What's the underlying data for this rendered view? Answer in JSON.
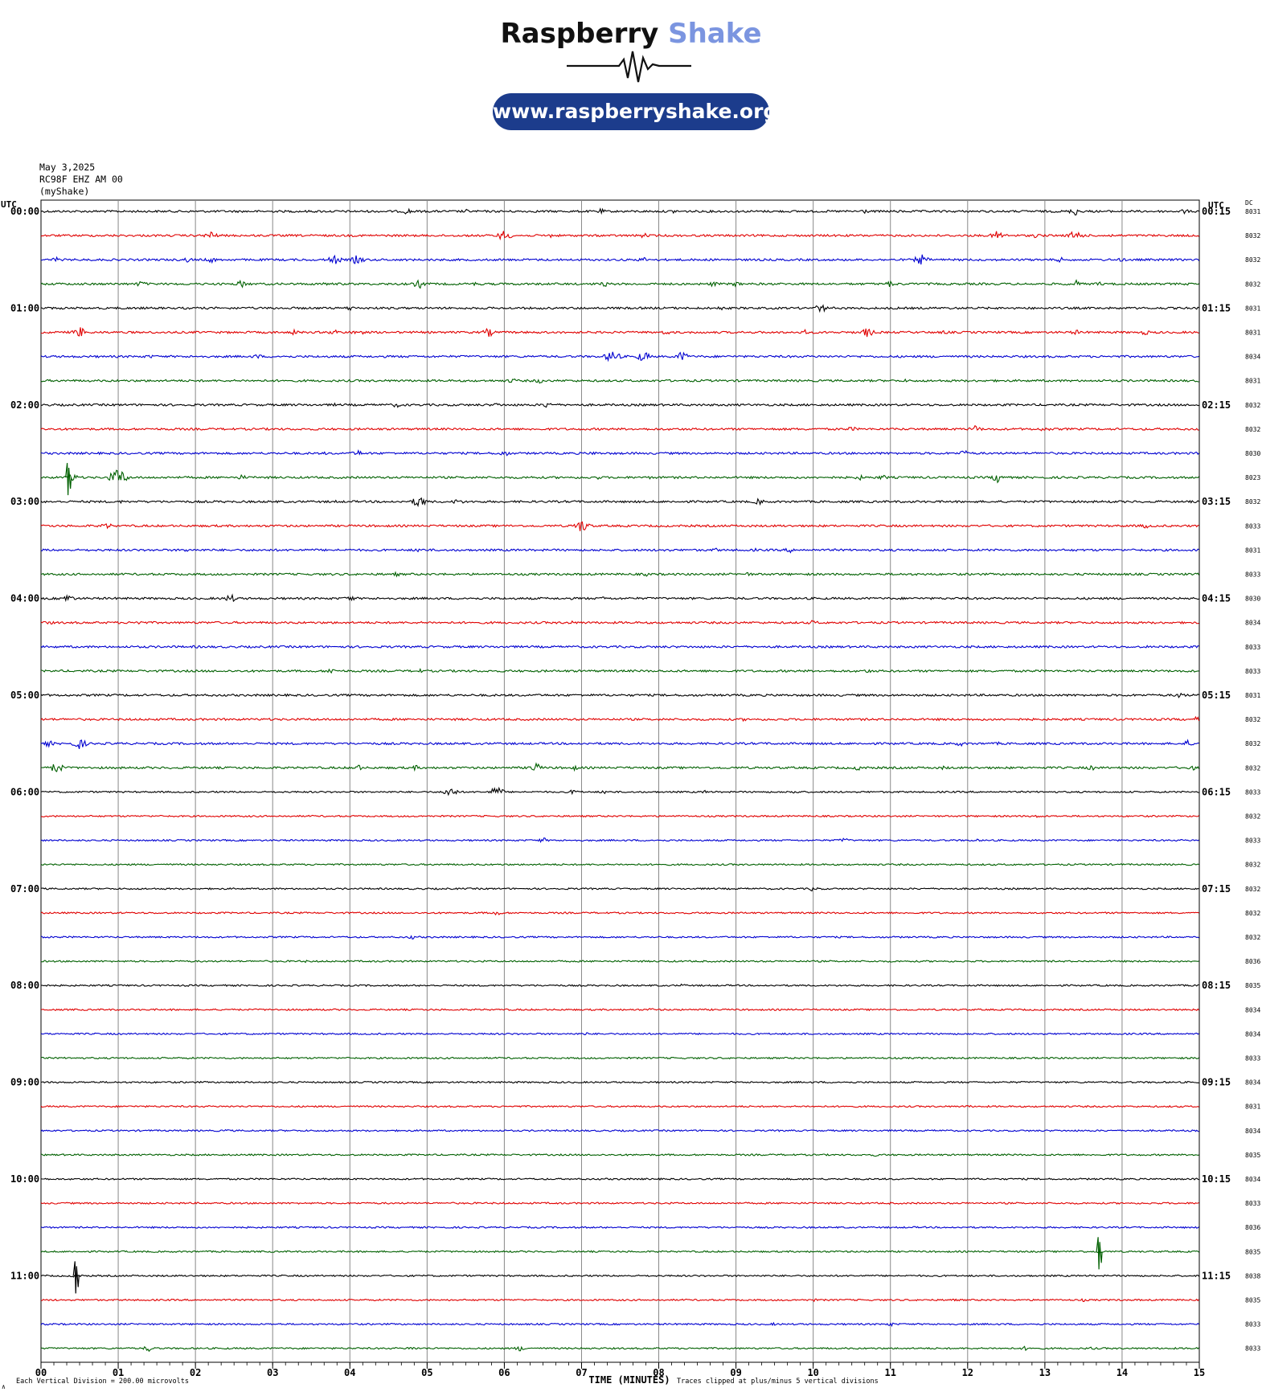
{
  "brand": {
    "name_dark": "Raspberry",
    "name_light": "Shake",
    "url": "www.raspberryshake.org",
    "name_color": "#111111",
    "accent": "#7b95e0",
    "pill_color": "#1c3c8c"
  },
  "header": {
    "date": "May 3,2025",
    "station": "RC98F EHZ AM 00",
    "network": "(myShake)"
  },
  "axes": {
    "left_label": "UTC",
    "right_label": "UTC",
    "dc_label": "DC",
    "xlabel": "TIME (MINUTES)",
    "scale_note": "Each Vertical Division =  200.00 microvolts",
    "clip_note": "Traces clipped at plus/minus 5 vertical divisions",
    "corner_mark": "∧"
  },
  "chart_data": {
    "type": "line",
    "subtype": "helicorder",
    "x_ticks": [
      "00",
      "01",
      "02",
      "03",
      "04",
      "05",
      "06",
      "07",
      "08",
      "09",
      "10",
      "11",
      "12",
      "13",
      "14",
      "15"
    ],
    "xlim": [
      0,
      15
    ],
    "trace_colors": [
      "#000000",
      "#e00000",
      "#0000d0",
      "#006000"
    ],
    "grid": true,
    "left_times": [
      "00:00",
      "",
      "",
      "",
      "01:00",
      "",
      "",
      "",
      "02:00",
      "",
      "",
      "",
      "03:00",
      "",
      "",
      "",
      "04:00",
      "",
      "",
      "",
      "05:00",
      "",
      "",
      "",
      "06:00",
      "",
      "",
      "",
      "07:00",
      "",
      "",
      "",
      "08:00",
      "",
      "",
      "",
      "09:00",
      "",
      "",
      "",
      "10:00",
      "",
      "",
      "",
      "11:00",
      "",
      "",
      ""
    ],
    "right_times": [
      "00:15",
      "",
      "",
      "",
      "01:15",
      "",
      "",
      "",
      "02:15",
      "",
      "",
      "",
      "03:15",
      "",
      "",
      "",
      "04:15",
      "",
      "",
      "",
      "05:15",
      "",
      "",
      "",
      "06:15",
      "",
      "",
      "",
      "07:15",
      "",
      "",
      "",
      "08:15",
      "",
      "",
      "",
      "09:15",
      "",
      "",
      "",
      "10:15",
      "",
      "",
      "",
      "11:15",
      "",
      "",
      ""
    ],
    "dc_values": [
      "8031",
      "8032",
      "8032",
      "8032",
      "8031",
      "8031",
      "8034",
      "8031",
      "8032",
      "8032",
      "8030",
      "8023",
      "8032",
      "8033",
      "8031",
      "8033",
      "8030",
      "8034",
      "8033",
      "8033",
      "8031",
      "8032",
      "8032",
      "8032",
      "8033",
      "8032",
      "8033",
      "8032",
      "8032",
      "8032",
      "8032",
      "8036",
      "8035",
      "8034",
      "8034",
      "8033",
      "8034",
      "8031",
      "8034",
      "8035",
      "8034",
      "8033",
      "8036",
      "8035",
      "8038",
      "8035",
      "8033",
      "8033"
    ],
    "rows": 48,
    "activity": [
      [
        [
          4.75,
          0.6
        ],
        [
          5.5,
          0.4
        ],
        [
          7.25,
          0.5
        ],
        [
          8.2,
          0.4
        ],
        [
          10.65,
          0.5
        ],
        [
          11.1,
          0.3
        ],
        [
          13.4,
          0.8
        ],
        [
          14.8,
          0.5
        ]
      ],
      [
        [
          2.2,
          0.8
        ],
        [
          6.0,
          1.0
        ],
        [
          6.6,
          0.4
        ],
        [
          7.8,
          0.5
        ],
        [
          12.4,
          1.0
        ],
        [
          12.9,
          0.5
        ],
        [
          13.4,
          1.0
        ],
        [
          13.9,
          0.4
        ]
      ],
      [
        [
          0.2,
          0.5
        ],
        [
          1.9,
          0.5
        ],
        [
          2.2,
          0.6
        ],
        [
          3.8,
          0.9
        ],
        [
          4.1,
          0.9
        ],
        [
          7.8,
          0.5
        ],
        [
          11.4,
          1.0
        ],
        [
          13.2,
          0.5
        ],
        [
          14.0,
          0.4
        ]
      ],
      [
        [
          1.3,
          0.6
        ],
        [
          2.6,
          0.7
        ],
        [
          3.7,
          0.4
        ],
        [
          4.9,
          0.8
        ],
        [
          5.6,
          0.4
        ],
        [
          7.3,
          0.5
        ],
        [
          8.7,
          0.5
        ],
        [
          9.0,
          0.5
        ],
        [
          11.0,
          0.6
        ],
        [
          13.4,
          0.7
        ],
        [
          13.7,
          0.4
        ]
      ],
      [
        [
          4.0,
          0.5
        ],
        [
          8.8,
          0.4
        ],
        [
          10.1,
          0.8
        ]
      ],
      [
        [
          0.5,
          1.0
        ],
        [
          3.3,
          0.6
        ],
        [
          3.8,
          0.6
        ],
        [
          4.1,
          0.7
        ],
        [
          5.8,
          0.8
        ],
        [
          8.1,
          0.5
        ],
        [
          9.9,
          0.5
        ],
        [
          10.7,
          0.9
        ],
        [
          11.7,
          0.4
        ],
        [
          13.4,
          0.5
        ],
        [
          14.3,
          0.5
        ]
      ],
      [
        [
          1.4,
          0.4
        ],
        [
          2.8,
          0.5
        ],
        [
          7.4,
          1.2
        ],
        [
          7.8,
          1.0
        ],
        [
          8.3,
          0.9
        ]
      ],
      [
        [
          2.8,
          0.3
        ],
        [
          6.1,
          0.5
        ],
        [
          6.45,
          0.5
        ],
        [
          11.2,
          0.3
        ]
      ],
      [
        [
          3.8,
          0.3
        ],
        [
          4.6,
          0.5
        ],
        [
          5.9,
          0.4
        ],
        [
          6.55,
          0.6
        ]
      ],
      [
        [
          9.5,
          0.3
        ],
        [
          10.5,
          0.5
        ],
        [
          12.1,
          0.7
        ],
        [
          13.0,
          0.5
        ]
      ],
      [
        [
          3.7,
          0.3
        ],
        [
          4.1,
          0.6
        ],
        [
          6.0,
          0.6
        ],
        [
          7.15,
          0.4
        ],
        [
          11.95,
          0.6
        ]
      ],
      [
        [
          0.4,
          0.8
        ],
        [
          1.0,
          1.6
        ],
        [
          2.6,
          0.5
        ],
        [
          6.35,
          0.3
        ],
        [
          7.2,
          0.4
        ],
        [
          7.9,
          0.3
        ],
        [
          10.6,
          0.5
        ],
        [
          10.9,
          0.5
        ],
        [
          12.4,
          1.0
        ]
      ],
      [
        [
          1.05,
          0.3
        ],
        [
          3.8,
          0.3
        ],
        [
          4.9,
          1.1
        ],
        [
          5.4,
          0.6
        ],
        [
          9.3,
          0.6
        ]
      ],
      [
        [
          0.85,
          0.6
        ],
        [
          7.0,
          1.2
        ],
        [
          9.6,
          0.3
        ],
        [
          14.3,
          0.5
        ]
      ],
      [
        [
          1.9,
          0.4
        ],
        [
          4.9,
          0.5
        ],
        [
          8.1,
          0.4
        ],
        [
          8.75,
          0.4
        ],
        [
          9.25,
          0.3
        ],
        [
          9.7,
          0.5
        ]
      ],
      [
        [
          4.6,
          0.4
        ],
        [
          7.85,
          0.4
        ],
        [
          9.15,
          0.4
        ]
      ],
      [
        [
          0.35,
          0.8
        ],
        [
          2.45,
          0.8
        ],
        [
          4.0,
          0.6
        ],
        [
          5.5,
          0.3
        ],
        [
          7.3,
          0.4
        ]
      ],
      [
        [
          0.1,
          0.4
        ],
        [
          1.25,
          0.5
        ],
        [
          6.85,
          0.4
        ],
        [
          10.0,
          0.5
        ]
      ],
      [
        [
          2.0,
          0.3
        ],
        [
          14.3,
          0.3
        ]
      ],
      [
        [
          3.75,
          0.6
        ],
        [
          4.9,
          0.4
        ],
        [
          5.4,
          0.3
        ],
        [
          10.7,
          0.4
        ]
      ],
      [
        [
          3.45,
          0.2
        ],
        [
          14.75,
          0.6
        ]
      ],
      [
        [
          9.1,
          0.3
        ],
        [
          14.95,
          0.5
        ]
      ],
      [
        [
          0.1,
          0.6
        ],
        [
          0.5,
          1.0
        ],
        [
          11.9,
          0.5
        ],
        [
          12.4,
          0.3
        ],
        [
          14.85,
          0.6
        ]
      ],
      [
        [
          0.2,
          1.0
        ],
        [
          4.1,
          0.6
        ],
        [
          4.85,
          0.5
        ],
        [
          6.4,
          0.9
        ],
        [
          6.9,
          0.5
        ],
        [
          10.6,
          0.6
        ],
        [
          11.7,
          0.4
        ],
        [
          13.6,
          0.5
        ],
        [
          14.9,
          0.5
        ]
      ],
      [
        [
          5.3,
          1.0
        ],
        [
          5.9,
          1.0
        ],
        [
          6.9,
          0.5
        ],
        [
          7.3,
          0.4
        ],
        [
          8.6,
          0.3
        ],
        [
          9.75,
          0.4
        ]
      ],
      [
        [
          12.9,
          0.3
        ]
      ],
      [
        [
          6.5,
          0.5
        ],
        [
          10.4,
          0.5
        ],
        [
          12.1,
          0.3
        ]
      ],
      [],
      [
        [
          10.0,
          0.5
        ]
      ],
      [
        [
          5.9,
          0.5
        ]
      ],
      [
        [
          4.8,
          0.4
        ]
      ],
      [
        [
          3.4,
          0.3
        ]
      ],
      [
        [
          8.3,
          0.3
        ]
      ],
      [
        [
          7.9,
          0.3
        ]
      ],
      [
        [
          7.05,
          0.3
        ]
      ],
      [],
      [],
      [
        [
          12.0,
          0.3
        ]
      ],
      [
        [
          2.4,
          0.3
        ]
      ],
      [
        [
          10.8,
          0.3
        ]
      ],
      [],
      [
        [
          11.0,
          0.2
        ]
      ],
      [],
      [
        [
          13.45,
          0.3
        ],
        [
          13.7,
          0.3
        ]
      ],
      [
        [
          0.45,
          0.4
        ]
      ],
      [
        [
          10.0,
          0.3
        ],
        [
          11.8,
          0.3
        ],
        [
          13.5,
          0.3
        ]
      ],
      [
        [
          9.5,
          0.3
        ],
        [
          11.0,
          0.4
        ]
      ],
      [
        [
          1.4,
          0.6
        ],
        [
          4.8,
          0.4
        ],
        [
          6.2,
          0.5
        ],
        [
          12.75,
          0.4
        ],
        [
          13.6,
          0.3
        ]
      ]
    ],
    "spikes": [
      {
        "row": 11,
        "x": 0.35,
        "color": "#006000"
      },
      {
        "row": 43,
        "x": 13.7,
        "color": "#006000"
      },
      {
        "row": 44,
        "x": 0.45,
        "color": "#000000"
      }
    ]
  }
}
